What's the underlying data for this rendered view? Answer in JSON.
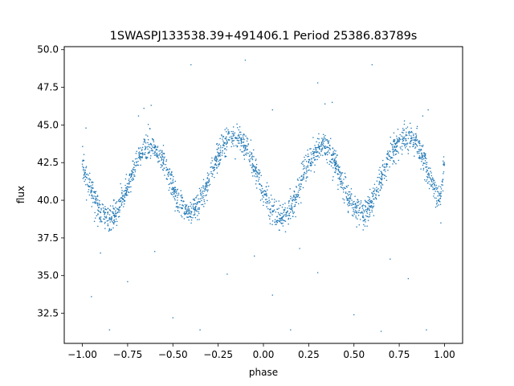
{
  "chart_data": {
    "type": "scatter",
    "title": "1SWASPJ133538.39+491406.1 Period 25386.83789s",
    "xlabel": "phase",
    "ylabel": "flux",
    "xlim": [
      -1.1,
      1.1
    ],
    "ylim": [
      30.5,
      50.2
    ],
    "xticks": [
      -1.0,
      -0.75,
      -0.5,
      -0.25,
      0.0,
      0.25,
      0.5,
      0.75,
      1.0
    ],
    "xtick_labels": [
      "−1.00",
      "−0.75",
      "−0.50",
      "−0.25",
      "0.00",
      "0.25",
      "0.50",
      "0.75",
      "1.00"
    ],
    "yticks": [
      32.5,
      35.0,
      37.5,
      40.0,
      42.5,
      45.0,
      47.5,
      50.0
    ],
    "ytick_labels": [
      "32.5",
      "35.0",
      "37.5",
      "40.0",
      "42.5",
      "45.0",
      "47.5",
      "50.0"
    ],
    "grid": false,
    "marker_color": "#1f77b4",
    "series": [
      {
        "x": [
          -1.0,
          -0.975,
          -0.95,
          -0.925,
          -0.9,
          -0.875,
          -0.85,
          -0.825,
          -0.8,
          -0.775,
          -0.75,
          -0.725,
          -0.7,
          -0.675,
          -0.65,
          -0.625,
          -0.6,
          -0.575,
          -0.55,
          -0.525,
          -0.5,
          -0.475,
          -0.45,
          -0.425,
          -0.4,
          -0.375,
          -0.35,
          -0.325,
          -0.3,
          -0.275,
          -0.25,
          -0.225,
          -0.2,
          -0.175,
          -0.15,
          -0.125,
          -0.1,
          -0.075,
          -0.05,
          -0.025,
          0.0,
          0.025,
          0.05,
          0.075,
          0.1,
          0.125,
          0.15,
          0.175,
          0.2,
          0.225,
          0.25,
          0.275,
          0.3,
          0.325,
          0.35,
          0.375,
          0.4,
          0.425,
          0.45,
          0.475,
          0.5,
          0.525,
          0.55,
          0.575,
          0.6,
          0.625,
          0.65,
          0.675,
          0.7,
          0.725,
          0.75,
          0.775,
          0.8,
          0.825,
          0.85,
          0.875,
          0.9,
          0.925,
          0.95,
          0.975,
          1.0
        ],
        "y": [
          42.4,
          41.5,
          40.7,
          39.8,
          39.2,
          38.9,
          38.8,
          39.0,
          39.4,
          40.1,
          40.9,
          41.7,
          42.5,
          43.1,
          43.5,
          43.7,
          43.5,
          43.0,
          42.4,
          41.6,
          40.8,
          40.0,
          39.5,
          39.2,
          39.1,
          39.4,
          39.9,
          40.6,
          41.4,
          42.2,
          42.9,
          43.5,
          43.9,
          44.1,
          44.1,
          44.0,
          43.6,
          43.0,
          42.2,
          41.4,
          40.6,
          39.9,
          39.3,
          38.9,
          38.8,
          39.0,
          39.4,
          40.1,
          40.9,
          41.7,
          42.5,
          43.1,
          43.5,
          43.7,
          43.5,
          43.0,
          42.4,
          41.6,
          40.8,
          40.0,
          39.5,
          39.2,
          39.1,
          39.4,
          39.9,
          40.6,
          41.4,
          42.2,
          42.9,
          43.5,
          43.9,
          44.1,
          44.1,
          44.0,
          43.6,
          43.0,
          42.2,
          41.4,
          40.6,
          39.9,
          42.4
        ]
      }
    ],
    "outliers": [
      {
        "x": -0.62,
        "y": 46.3
      },
      {
        "x": -0.66,
        "y": 46.1
      },
      {
        "x": -0.69,
        "y": 45.6
      },
      {
        "x": -0.4,
        "y": 49.0
      },
      {
        "x": -0.1,
        "y": 49.3
      },
      {
        "x": 0.05,
        "y": 46.0
      },
      {
        "x": 0.34,
        "y": 46.4
      },
      {
        "x": 0.38,
        "y": 46.5
      },
      {
        "x": 0.3,
        "y": 47.8
      },
      {
        "x": 0.6,
        "y": 49.0
      },
      {
        "x": 0.91,
        "y": 46.0
      },
      {
        "x": 0.88,
        "y": 45.6
      },
      {
        "x": -0.9,
        "y": 36.5
      },
      {
        "x": -0.85,
        "y": 31.4
      },
      {
        "x": -0.35,
        "y": 31.4
      },
      {
        "x": 0.15,
        "y": 31.4
      },
      {
        "x": 0.65,
        "y": 31.3
      },
      {
        "x": 0.9,
        "y": 31.4
      },
      {
        "x": -0.5,
        "y": 32.2
      },
      {
        "x": 0.5,
        "y": 32.4
      },
      {
        "x": -0.95,
        "y": 33.6
      },
      {
        "x": 0.05,
        "y": 33.7
      },
      {
        "x": -0.2,
        "y": 35.1
      },
      {
        "x": 0.3,
        "y": 35.2
      },
      {
        "x": -0.75,
        "y": 34.6
      },
      {
        "x": 0.8,
        "y": 34.8
      },
      {
        "x": -0.05,
        "y": 36.3
      },
      {
        "x": 0.7,
        "y": 36.1
      },
      {
        "x": -0.6,
        "y": 36.6
      },
      {
        "x": 0.2,
        "y": 36.8
      },
      {
        "x": 0.98,
        "y": 38.5
      },
      {
        "x": -0.98,
        "y": 44.8
      }
    ]
  }
}
